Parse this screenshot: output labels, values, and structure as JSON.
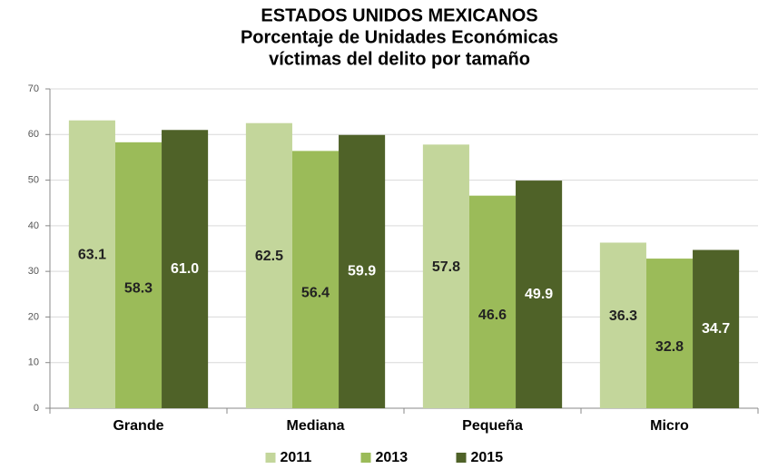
{
  "chart_data": {
    "type": "bar",
    "title": [
      "ESTADOS UNIDOS MEXICANOS",
      "Porcentaje de Unidades Económicas",
      "víctimas del delito por tamaño"
    ],
    "categories": [
      "Grande",
      "Mediana",
      "Pequeña",
      "Micro"
    ],
    "series": [
      {
        "name": "2011",
        "color": "#c3d69b",
        "values": [
          63.1,
          62.5,
          57.8,
          36.3
        ],
        "value_labels": [
          "63.1",
          "62.5",
          "57.8",
          "36.3"
        ]
      },
      {
        "name": "2013",
        "color": "#9bbb59",
        "values": [
          58.3,
          56.4,
          46.6,
          32.8
        ],
        "value_labels": [
          "58.3",
          "56.4",
          "46.6",
          "32.8"
        ]
      },
      {
        "name": "2015",
        "color": "#4f6228",
        "values": [
          61.0,
          59.9,
          49.9,
          34.7
        ],
        "value_labels": [
          "61.0",
          "59.9",
          "49.9",
          "34.7"
        ]
      }
    ],
    "ylim": [
      0,
      70
    ],
    "yticks": [
      0,
      10,
      20,
      30,
      40,
      50,
      60,
      70
    ],
    "grid": true,
    "legend": "bottom"
  }
}
